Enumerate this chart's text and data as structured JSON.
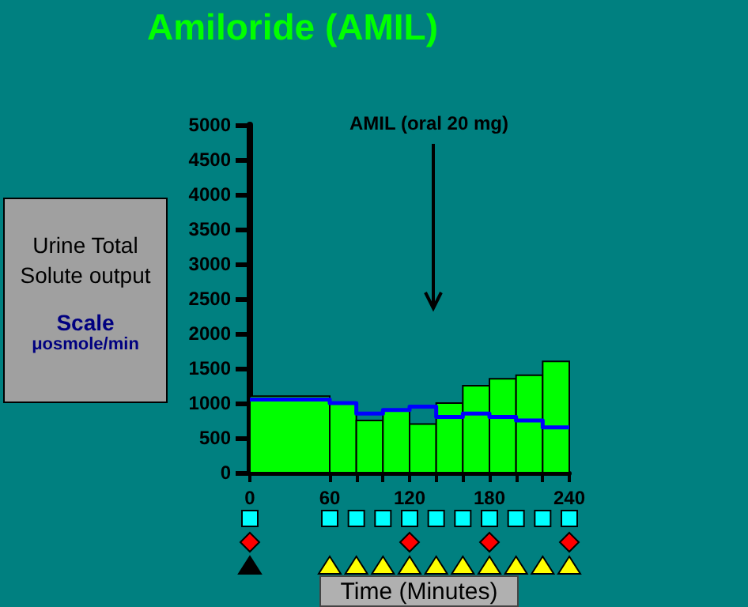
{
  "chart_data": {
    "type": "histogram",
    "title": "Amiloride (AMIL)",
    "ylabel": "Urine Total Solute output",
    "xlabel": "Time (Minutes)",
    "annotations": [
      "Scale",
      "μosmole/min",
      "AMIL (oral 20 mg)"
    ],
    "bins": [
      0,
      60,
      80,
      100,
      120,
      140,
      160,
      180,
      200,
      220,
      240
    ],
    "series": [
      {
        "color": "#00ff00",
        "values": [
          1100,
          1000,
          750,
          900,
          700,
          1000,
          1250,
          1350,
          1400,
          1600
        ]
      },
      {
        "type": "step",
        "color": "#0000ff",
        "x": [
          0,
          60,
          80,
          100,
          120,
          140,
          160,
          180,
          200,
          220,
          240
        ],
        "values": [
          1050,
          1000,
          850,
          900,
          950,
          800,
          850,
          800,
          750,
          650,
          650
        ]
      }
    ],
    "xlim": [
      0,
      240
    ],
    "xticks": [
      0,
      {
        "value": 60,
        "label": "60"
      },
      {
        "value": 80,
        "label": null
      },
      {
        "value": 100,
        "label": null
      },
      120,
      {
        "value": 140,
        "label": null
      },
      {
        "value": 160,
        "label": null
      },
      180,
      {
        "value": 200,
        "label": null
      },
      {
        "value": 220,
        "label": null
      },
      240
    ],
    "ylim": [
      0,
      5000
    ],
    "yticks": [
      0,
      500,
      1000,
      1500,
      2000,
      2500,
      3000,
      3500,
      4000,
      4500,
      5000
    ],
    "grid": false
  }
}
